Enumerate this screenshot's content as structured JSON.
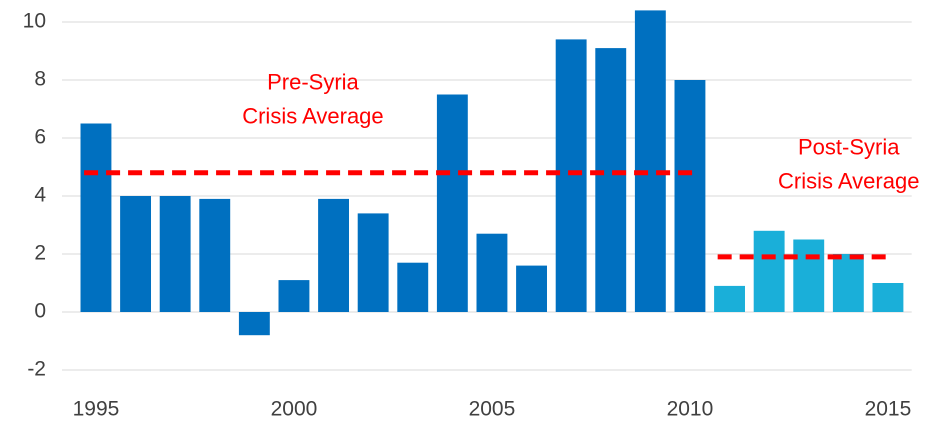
{
  "chart_data": {
    "type": "bar",
    "x": [
      1995,
      1996,
      1997,
      1998,
      1999,
      2000,
      2001,
      2002,
      2003,
      2004,
      2005,
      2006,
      2007,
      2008,
      2009,
      2010,
      2011,
      2012,
      2013,
      2014,
      2015
    ],
    "values": [
      6.5,
      4.0,
      4.0,
      3.9,
      -0.8,
      1.1,
      3.9,
      3.4,
      1.7,
      7.5,
      2.7,
      1.6,
      9.4,
      9.1,
      10.4,
      8.0,
      0.9,
      2.8,
      2.5,
      2.0,
      1.0
    ],
    "colors": [
      "#0070c0",
      "#0070c0",
      "#0070c0",
      "#0070c0",
      "#0070c0",
      "#0070c0",
      "#0070c0",
      "#0070c0",
      "#0070c0",
      "#0070c0",
      "#0070c0",
      "#0070c0",
      "#0070c0",
      "#0070c0",
      "#0070c0",
      "#0070c0",
      "#1aafd9",
      "#1aafd9",
      "#1aafd9",
      "#1aafd9",
      "#1aafd9"
    ],
    "xlim": [
      1994.4,
      2015.6
    ],
    "xticks": [
      1995,
      2000,
      2005,
      2010,
      2015
    ],
    "ylim": [
      -2,
      10.7
    ],
    "yticks": [
      -2,
      0,
      2,
      4,
      6,
      8,
      10
    ],
    "grid": true,
    "reference_lines": [
      {
        "label_lines": [
          "Pre-Syria",
          "Crisis Average"
        ],
        "value": 4.8,
        "x": [
          1995,
          2010
        ],
        "color": "#ff0000"
      },
      {
        "label_lines": [
          "Post-Syria",
          "Crisis Average"
        ],
        "value": 1.9,
        "x": [
          2011,
          2015
        ],
        "color": "#ff0000"
      }
    ]
  }
}
